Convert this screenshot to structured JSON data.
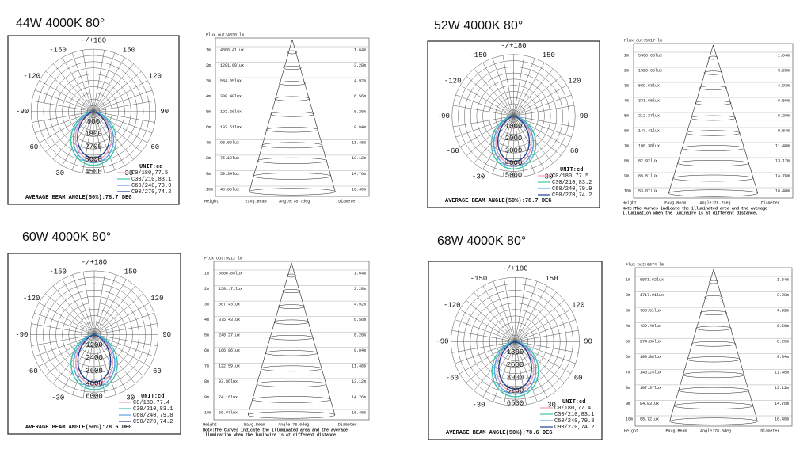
{
  "panels": [
    {
      "title": "44W 4000K 80°",
      "polar": {
        "angles": [
          "-/+180",
          "-150",
          "150",
          "-120",
          "120",
          "-90",
          "90",
          "-60",
          "60",
          "-30",
          "30"
        ],
        "radial": [
          "900",
          "1800",
          "2700",
          "3600",
          "4500"
        ],
        "legend": [
          "UNIT:cd",
          "C0/180,77.5",
          "C30/210,83.1",
          "C60/240,79.9",
          "C90/270,74.2"
        ],
        "beam": "AVERAGE BEAM ANGLE(50%):78.7 DEG"
      },
      "cone": {
        "flux": "Flux out:4830 lm",
        "rows": [
          [
            "1m",
            "4806.41lux",
            "1.64m"
          ],
          [
            "2m",
            "1201.60lux",
            "3.28m"
          ],
          [
            "3m",
            "534.05lux",
            "4.92m"
          ],
          [
            "4m",
            "300.40lux",
            "6.56m"
          ],
          [
            "5m",
            "192.26lux",
            "8.20m"
          ],
          [
            "6m",
            "133.51lux",
            "9.84m"
          ],
          [
            "7m",
            "98.09lux",
            "11.48m"
          ],
          [
            "8m",
            "75.10lux",
            "13.12m"
          ],
          [
            "9m",
            "59.34lux",
            "14.76m"
          ],
          [
            "10m",
            "48.06lux",
            "16.40m"
          ]
        ],
        "footer": [
          "Height",
          "Eavg.Beam",
          "Angle:78.7deg",
          "Diameter"
        ]
      }
    },
    {
      "title": "52W 4000K 80°",
      "polar": {
        "angles": [
          "-/+180",
          "-150",
          "150",
          "-120",
          "120",
          "-90",
          "90",
          "-60",
          "60",
          "-30",
          "30"
        ],
        "radial": [
          "1000",
          "2000",
          "3000",
          "4000",
          "5000"
        ],
        "legend": [
          "UNIT:cd",
          "C0/180,77.5",
          "C30/210,83.2",
          "C60/240,79.9",
          "C90/270,74.2"
        ],
        "beam": "AVERAGE BEAM ANGLE(50%):78.7 DEG"
      },
      "cone": {
        "flux": "Flux out:5317 lm",
        "rows": [
          [
            "1m",
            "5306.63lux",
            "1.64m"
          ],
          [
            "2m",
            "1326.66lux",
            "3.28m"
          ],
          [
            "3m",
            "589.63lux",
            "4.92m"
          ],
          [
            "4m",
            "331.66lux",
            "6.56m"
          ],
          [
            "5m",
            "212.27lux",
            "8.20m"
          ],
          [
            "6m",
            "147.41lux",
            "9.84m"
          ],
          [
            "7m",
            "108.30lux",
            "11.48m"
          ],
          [
            "8m",
            "82.92lux",
            "13.12m"
          ],
          [
            "9m",
            "65.51lux",
            "14.76m"
          ],
          [
            "10m",
            "53.07lux",
            "16.40m"
          ]
        ],
        "footer": [
          "Height",
          "Eavg.Beam",
          "Angle:78.7deg",
          "Diameter"
        ],
        "note": [
          "Note:The Curves indicate the illuminated area and the average",
          "illumination when the luminaire is at different distance."
        ]
      }
    },
    {
      "title": "60W 4000K 80°",
      "polar": {
        "angles": [
          "-/+180",
          "-150",
          "150",
          "-120",
          "120",
          "-90",
          "90",
          "-60",
          "60",
          "-30",
          "30"
        ],
        "radial": [
          "1200",
          "2400",
          "3600",
          "4800",
          "6000"
        ],
        "legend": [
          "UNIT:cd",
          "C0/180,77.4",
          "C30/210,83.1",
          "C60/240,79.8",
          "C90/270,74.2"
        ],
        "beam": "AVERAGE BEAM ANGLE(50%):78.6 DEG"
      },
      "cone": {
        "flux": "Flux out:5912 lm",
        "rows": [
          [
            "1m",
            "6006.85lux",
            "1.64m"
          ],
          [
            "2m",
            "1501.71lux",
            "3.28m"
          ],
          [
            "3m",
            "667.43lux",
            "4.92m"
          ],
          [
            "4m",
            "375.43lux",
            "6.56m"
          ],
          [
            "5m",
            "240.27lux",
            "8.20m"
          ],
          [
            "6m",
            "166.86lux",
            "9.84m"
          ],
          [
            "7m",
            "122.59lux",
            "11.48m"
          ],
          [
            "8m",
            "93.86lux",
            "13.12m"
          ],
          [
            "9m",
            "74.16lux",
            "14.76m"
          ],
          [
            "10m",
            "60.07lux",
            "16.40m"
          ]
        ],
        "footer": [
          "Height",
          "Eavg.Beam",
          "Angle:78.6deg",
          "Diameter"
        ],
        "note": [
          "Note:The Curves indicate the illuminated area and the average",
          "illumination when the luminaire is at different distance."
        ]
      }
    },
    {
      "title": "68W 4000K 80°",
      "polar": {
        "angles": [
          "-/+180",
          "-150",
          "150",
          "-120",
          "120",
          "-90",
          "90",
          "-60",
          "60",
          "-30",
          "30"
        ],
        "radial": [
          "1300",
          "2600",
          "3900",
          "5200",
          "6500"
        ],
        "legend": [
          "UNIT:cd",
          "C0/180,77.4",
          "C30/210,83.1",
          "C60/240,79.8",
          "C90/270,74.2"
        ],
        "beam": "AVERAGE BEAM ANGLE(50%):78.6 DEG"
      },
      "cone": {
        "flux": "Flux out:6674 lm",
        "rows": [
          [
            "1m",
            "6871.62lux",
            "1.64m"
          ],
          [
            "2m",
            "1717.91lux",
            "3.28m"
          ],
          [
            "3m",
            "763.51lux",
            "4.92m"
          ],
          [
            "4m",
            "429.48lux",
            "6.56m"
          ],
          [
            "5m",
            "274.86lux",
            "8.20m"
          ],
          [
            "6m",
            "190.88lux",
            "9.84m"
          ],
          [
            "7m",
            "140.24lux",
            "11.48m"
          ],
          [
            "8m",
            "107.37lux",
            "13.12m"
          ],
          [
            "9m",
            "84.83lux",
            "14.76m"
          ],
          [
            "10m",
            "68.72lux",
            "16.40m"
          ]
        ],
        "footer": [
          "Height",
          "Eavg.Beam",
          "Angle:78.6deg",
          "Diameter"
        ]
      }
    }
  ]
}
